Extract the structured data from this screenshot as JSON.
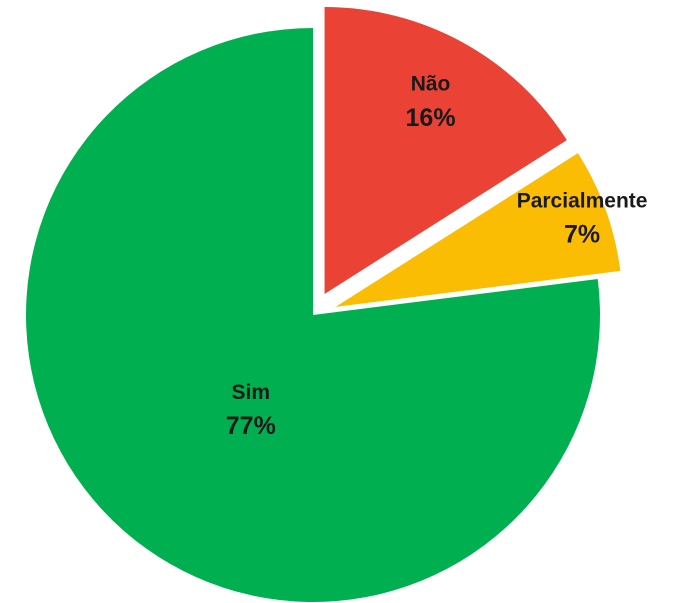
{
  "chart_data": {
    "type": "pie",
    "categories": [
      "Não",
      "Parcialmente",
      "Sim"
    ],
    "values": [
      16,
      7,
      77
    ],
    "value_labels": [
      "16%",
      "7%",
      "77%"
    ],
    "colors": [
      "#ea4335",
      "#fbbc04",
      "#00b050"
    ]
  }
}
